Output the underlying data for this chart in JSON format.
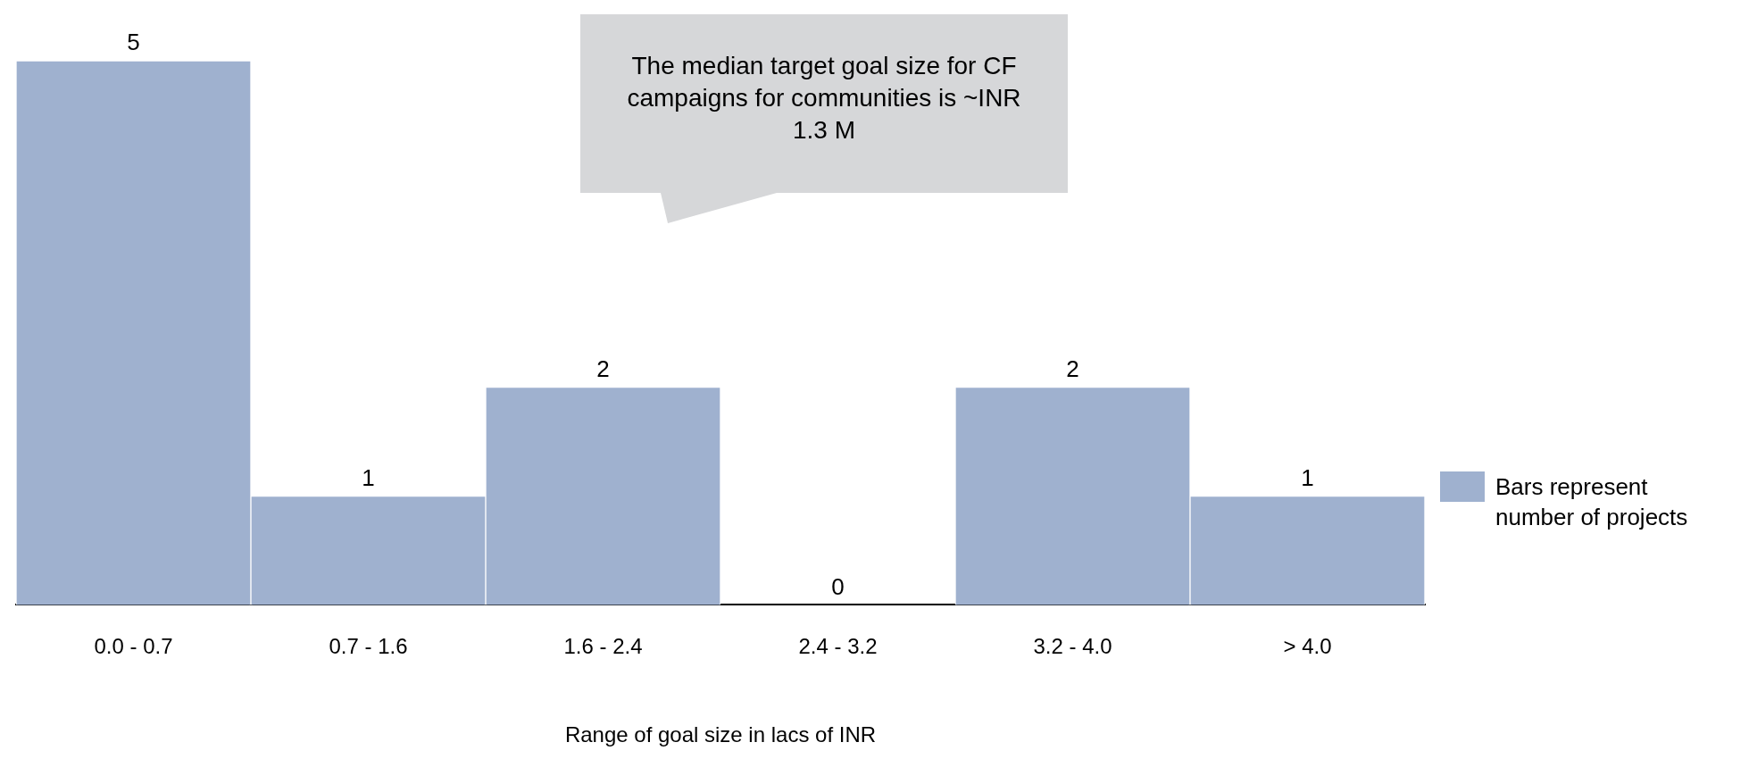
{
  "chart_data": {
    "type": "bar",
    "xlabel": "Range of goal size in lacs of INR",
    "categories": [
      "0.0 - 0.7",
      "0.7 - 1.6",
      "1.6 - 2.4",
      "2.4 - 3.2",
      "3.2 - 4.0",
      "> 4.0"
    ],
    "series": [
      {
        "name": "Bars represent number of projects",
        "color": "#9fb1cf",
        "values": [
          5,
          1,
          2,
          0,
          2,
          1
        ]
      }
    ],
    "relative": false,
    "data_labels": true,
    "grid": false,
    "legend": "right",
    "annotations": [
      "The median target goal size for CF campaigns for communities is ~INR 1.3 M"
    ]
  }
}
